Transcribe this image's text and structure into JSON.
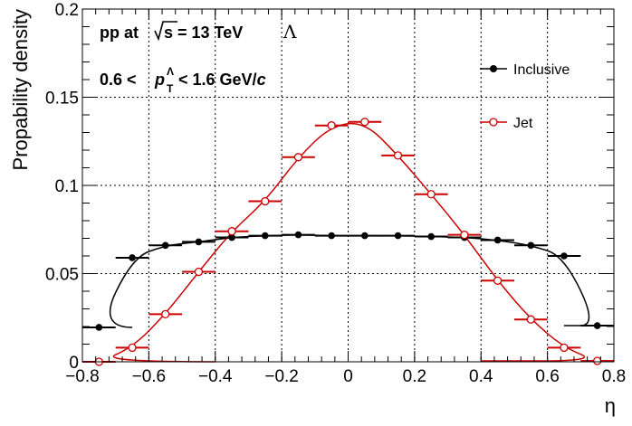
{
  "chart_data": {
    "type": "scatter",
    "xlabel": "η",
    "ylabel": "Propability density",
    "xlim": [
      -0.8,
      0.8
    ],
    "ylim": [
      0,
      0.2
    ],
    "x_ticks": [
      -0.8,
      -0.6,
      -0.4,
      -0.2,
      0,
      0.2,
      0.4,
      0.6,
      0.8
    ],
    "x_tick_labels": [
      "−0.8",
      "−0.6",
      "−0.4",
      "−0.2",
      "0",
      "0.2",
      "0.4",
      "0.6",
      "0.8"
    ],
    "y_ticks": [
      0,
      0.05,
      0.1,
      0.15,
      0.2
    ],
    "y_tick_labels": [
      "0",
      "0.05",
      "0.1",
      "0.15",
      "0.2"
    ],
    "grid": true,
    "legend_position": "top-right",
    "annotations": {
      "line1": {
        "prefix": "pp at ",
        "root": "s",
        "suffix": " = 13 TeV",
        "particle": "Λ"
      },
      "line2": {
        "prefix": "0.6 < ",
        "var": "p",
        "sup": "Λ",
        "sub": "T",
        "suffix": " < 1.6 GeV/",
        "unit_italic": "c"
      }
    },
    "x": [
      -0.75,
      -0.65,
      -0.55,
      -0.45,
      -0.35,
      -0.25,
      -0.15,
      -0.05,
      0.05,
      0.15,
      0.25,
      0.35,
      0.45,
      0.55,
      0.65,
      0.75
    ],
    "bin_half_width": 0.05,
    "series": [
      {
        "name": "Inclusive",
        "color": "#000000",
        "marker": "filled-circle",
        "values": [
          0.0195,
          0.059,
          0.066,
          0.068,
          0.0705,
          0.0715,
          0.072,
          0.0715,
          0.0715,
          0.0715,
          0.071,
          0.0705,
          0.069,
          0.066,
          0.06,
          0.0205
        ]
      },
      {
        "name": "Jet",
        "color": "#cc0000",
        "marker": "open-circle",
        "values": [
          0.0,
          0.008,
          0.027,
          0.051,
          0.074,
          0.091,
          0.116,
          0.134,
          0.136,
          0.117,
          0.095,
          0.072,
          0.046,
          0.024,
          0.008,
          0.0005
        ]
      }
    ]
  }
}
